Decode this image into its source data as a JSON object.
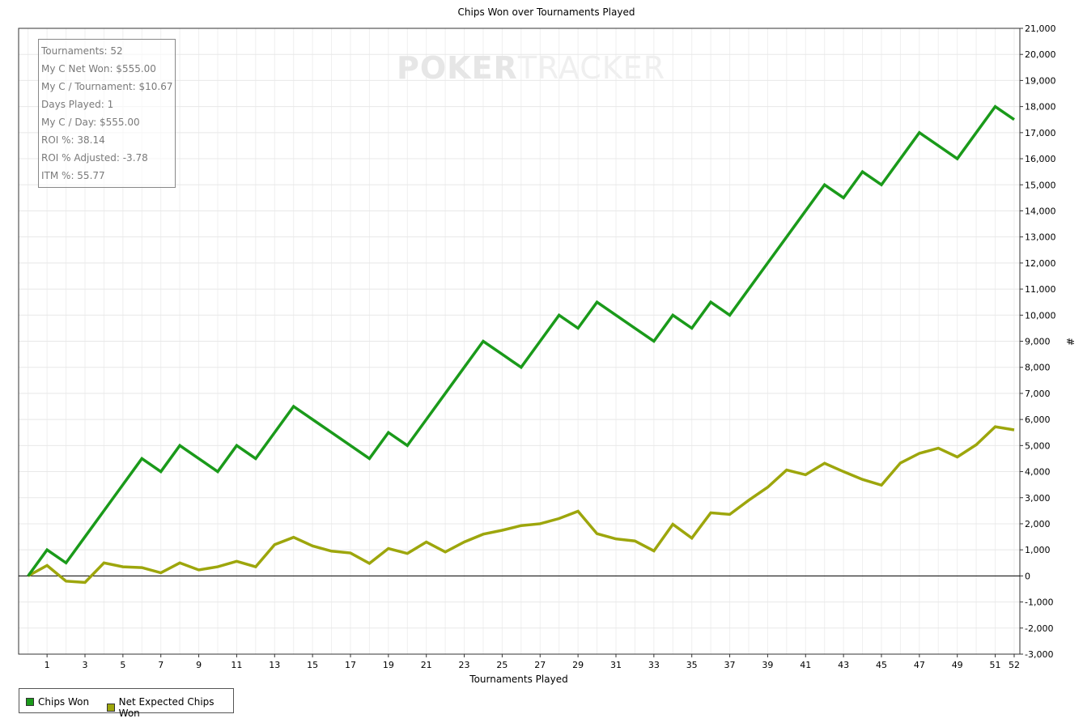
{
  "watermark": {
    "part1": "POKER",
    "part2": "TRACKER"
  },
  "stats": [
    "Tournaments: 52",
    "My C Net Won: $555.00",
    "My C / Tournament: $10.67",
    "Days Played: 1",
    "My C / Day: $555.00",
    "ROI %: 38.14",
    "ROI % Adjusted: -3.78",
    "ITM %: 55.77"
  ],
  "legend": [
    {
      "label": "Chips Won",
      "color": "#1a9a1a"
    },
    {
      "label": "Net Expected Chips Won",
      "color": "#9da60c"
    }
  ],
  "chart_data": {
    "type": "line",
    "title": "Chips Won over Tournaments Played",
    "xlabel": "Tournaments Played",
    "ylabel": "#",
    "xlim": [
      -0.5,
      52.3
    ],
    "ylim": [
      -3000,
      21000
    ],
    "x_ticks": [
      1,
      3,
      5,
      7,
      9,
      11,
      13,
      15,
      17,
      19,
      21,
      23,
      25,
      27,
      29,
      31,
      33,
      35,
      37,
      39,
      41,
      43,
      45,
      47,
      49,
      51,
      52
    ],
    "y_ticks": [
      -3000,
      -2000,
      -1000,
      0,
      1000,
      2000,
      3000,
      4000,
      5000,
      6000,
      7000,
      8000,
      9000,
      10000,
      11000,
      12000,
      13000,
      14000,
      15000,
      16000,
      17000,
      18000,
      19000,
      20000,
      21000
    ],
    "grid": true,
    "legend_position": "bottom-left",
    "x": [
      0,
      1,
      2,
      3,
      4,
      5,
      6,
      7,
      8,
      9,
      10,
      11,
      12,
      13,
      14,
      15,
      16,
      17,
      18,
      19,
      20,
      21,
      22,
      23,
      24,
      25,
      26,
      27,
      28,
      29,
      30,
      31,
      32,
      33,
      34,
      35,
      36,
      37,
      38,
      39,
      40,
      41,
      42,
      43,
      44,
      45,
      46,
      47,
      48,
      49,
      50,
      51,
      52
    ],
    "series": [
      {
        "name": "Chips Won",
        "color": "#1a9a1a",
        "values": [
          0,
          1000,
          500,
          1500,
          2500,
          3500,
          4500,
          4000,
          5000,
          4500,
          4000,
          5000,
          4500,
          5500,
          6500,
          6000,
          5500,
          5000,
          4500,
          5500,
          5000,
          6000,
          7000,
          8000,
          9000,
          8500,
          8000,
          9000,
          10000,
          9500,
          10500,
          10000,
          9500,
          9000,
          10000,
          9500,
          10500,
          10000,
          11000,
          12000,
          13000,
          14000,
          15000,
          14500,
          15500,
          15000,
          16000,
          17000,
          16500,
          16000,
          17000,
          18000,
          17500
        ]
      },
      {
        "name": "Net Expected Chips Won",
        "color": "#9da60c",
        "values": [
          0,
          400,
          -200,
          -250,
          500,
          350,
          320,
          120,
          500,
          230,
          350,
          560,
          350,
          1200,
          1480,
          1150,
          950,
          880,
          480,
          1050,
          860,
          1300,
          920,
          1300,
          1600,
          1750,
          1930,
          2000,
          2200,
          2480,
          1620,
          1420,
          1340,
          960,
          1980,
          1450,
          2420,
          2360,
          2900,
          3400,
          4060,
          3880,
          4320,
          4000,
          3700,
          3480,
          4330,
          4700,
          4900,
          4560,
          5030,
          5720,
          5600
        ]
      }
    ]
  }
}
